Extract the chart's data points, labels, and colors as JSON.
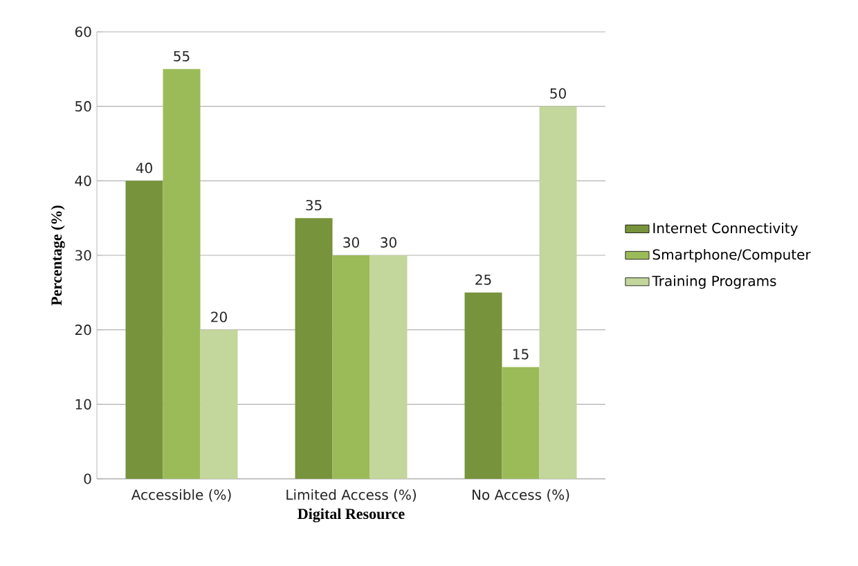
{
  "chart_data": {
    "type": "bar",
    "xlabel": "Digital Resource",
    "ylabel": "Percentage (%)",
    "categories": [
      "Accessible (%)",
      "Limited Access (%)",
      "No Access (%)"
    ],
    "series": [
      {
        "name": "Internet Connectivity",
        "color": "#77933c",
        "values": [
          40,
          35,
          25
        ]
      },
      {
        "name": "Smartphone/Computer",
        "color": "#9bbb59",
        "values": [
          55,
          30,
          15
        ]
      },
      {
        "name": "Training Programs",
        "color": "#c3d69b",
        "values": [
          20,
          30,
          50
        ]
      }
    ],
    "ylim": [
      0,
      60
    ],
    "yticks": [
      0,
      10,
      20,
      30,
      40,
      50,
      60
    ],
    "grid": "y",
    "legend": "right",
    "data_labels": true
  }
}
